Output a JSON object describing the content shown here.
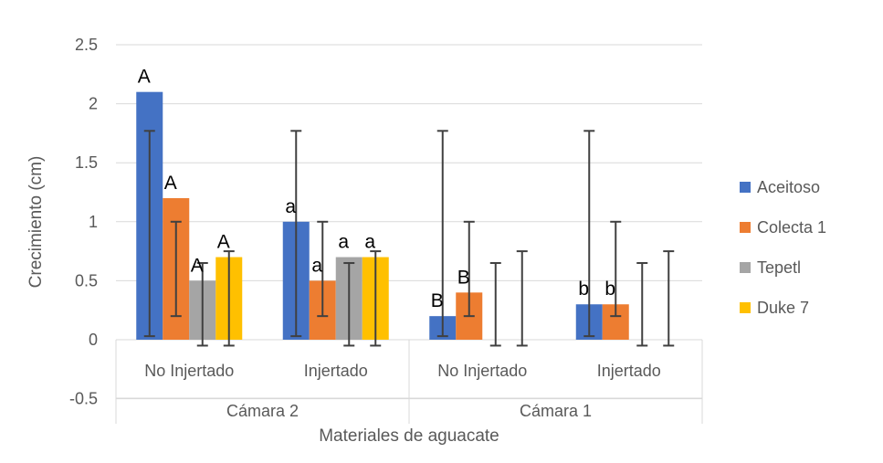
{
  "chart_data": {
    "type": "bar",
    "title": "",
    "xlabel": "Materiales de aguacate",
    "ylabel": "Crecimiento (cm)",
    "ylim": [
      -0.5,
      2.5
    ],
    "yticks": [
      -0.5,
      0,
      0.5,
      1,
      1.5,
      2,
      2.5
    ],
    "ytick_labels": [
      "-0.5",
      "0",
      "0.5",
      "1",
      "1.5",
      "2",
      "2.5"
    ],
    "grid": true,
    "legend_position": "right",
    "groups": [
      {
        "label": "Cámara 2",
        "categories": [
          "No Injertado",
          "Injertado"
        ]
      },
      {
        "label": "Cámara 1",
        "categories": [
          "No Injertado",
          "Injertado"
        ]
      }
    ],
    "categories": [
      "No Injertado",
      "Injertado",
      "No Injertado",
      "Injertado"
    ],
    "series": [
      {
        "name": "Aceitoso",
        "color": "#4472C4",
        "values": [
          2.1,
          1.0,
          0.2,
          0.3
        ],
        "error_low": [
          0.03,
          0.03,
          0.03,
          0.03
        ],
        "error_high": [
          1.77,
          1.77,
          1.77,
          1.77
        ],
        "letters": [
          "A",
          "a",
          "B",
          "b"
        ]
      },
      {
        "name": "Colecta 1",
        "color": "#ED7D31",
        "values": [
          1.2,
          0.5,
          0.4,
          0.3
        ],
        "error_low": [
          0.2,
          0.2,
          0.2,
          0.2
        ],
        "error_high": [
          1.0,
          1.0,
          1.0,
          1.0
        ],
        "letters": [
          "A",
          "a",
          "B",
          "b"
        ]
      },
      {
        "name": "Tepetl",
        "color": "#A5A5A5",
        "values": [
          0.5,
          0.7,
          0,
          0
        ],
        "error_low": [
          -0.05,
          -0.05,
          -0.05,
          -0.05
        ],
        "error_high": [
          0.65,
          0.65,
          0.65,
          0.65
        ],
        "letters": [
          "A",
          "a",
          "",
          ""
        ]
      },
      {
        "name": "Duke 7",
        "color": "#FFC000",
        "values": [
          0.7,
          0.7,
          0,
          0
        ],
        "error_low": [
          -0.05,
          -0.05,
          -0.05,
          -0.05
        ],
        "error_high": [
          0.75,
          0.75,
          0.75,
          0.75
        ],
        "letters": [
          "A",
          "a",
          "",
          ""
        ]
      }
    ]
  }
}
